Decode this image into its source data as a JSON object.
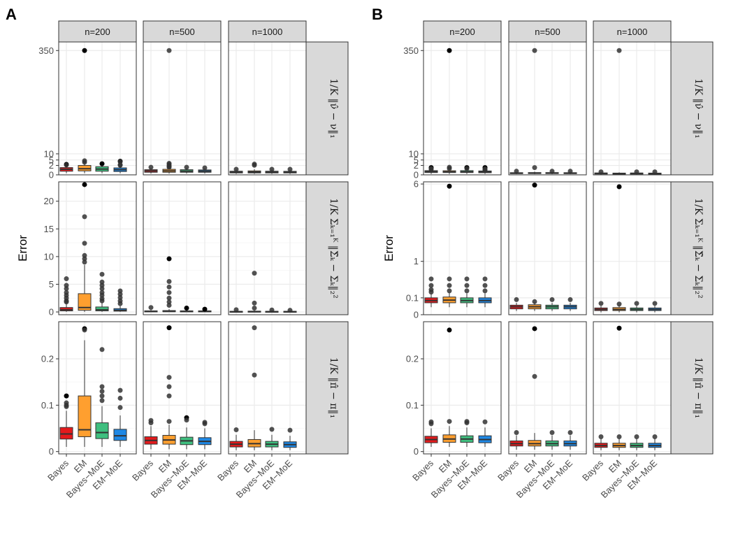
{
  "figure": {
    "panel_labels": [
      "A",
      "B"
    ],
    "ylabel": "Error",
    "column_strips": [
      "n=200",
      "n=500",
      "n=1000"
    ],
    "row_strips": [
      "1/K ‖ν̂ − ν‖₁",
      "1/K Σₖ₌₁ᴷ ‖Σ̂ₖ − Σₖ‖₂²",
      "1/K ‖π̂ − π‖₁"
    ],
    "methods": [
      "Bayes",
      "EM",
      "Bayes−MoE",
      "EM−MoE"
    ],
    "method_colors": [
      "#e41a1c",
      "#ff9f2f",
      "#3fbf7f",
      "#1e88e5"
    ]
  },
  "chart_data": [
    {
      "type": "box",
      "panel": "A",
      "row": 0,
      "scale": "sqrt",
      "ylim": [
        0,
        400
      ],
      "yticks": [
        0,
        2,
        5,
        10,
        350
      ],
      "boxes": [
        [
          [
            0.06,
            0.3,
            0.7,
            1.2,
            2.2
          ],
          [
            0.06,
            0.35,
            0.85,
            2.0,
            4.2
          ],
          [
            0.06,
            0.3,
            0.75,
            1.5,
            2.0
          ],
          [
            0.06,
            0.25,
            0.6,
            1.1,
            1.8
          ]
        ],
        [
          [
            0.04,
            0.15,
            0.35,
            0.6,
            1.1
          ],
          [
            0.04,
            0.15,
            0.35,
            0.7,
            1.2
          ],
          [
            0.04,
            0.15,
            0.3,
            0.6,
            1.1
          ],
          [
            0.04,
            0.15,
            0.3,
            0.55,
            1.0
          ]
        ],
        [
          [
            0.02,
            0.08,
            0.18,
            0.3,
            0.6
          ],
          [
            0.02,
            0.08,
            0.18,
            0.35,
            0.7
          ],
          [
            0.02,
            0.08,
            0.18,
            0.3,
            0.6
          ],
          [
            0.02,
            0.08,
            0.16,
            0.28,
            0.55
          ]
        ]
      ],
      "outliers": [
        [
          [
            2.5,
            2.2
          ],
          [
            350,
            4.5,
            3.6
          ],
          [
            2.8
          ],
          [
            4.2,
            4.0,
            2.3,
            2.1
          ]
        ],
        [
          [
            1.3
          ],
          [
            350,
            3.0,
            2.5,
            1.8,
            1.3,
            1.6
          ],
          [
            1.3
          ],
          [
            1.1
          ]
        ],
        [
          [
            0.7
          ],
          [
            2.6,
            2.1
          ],
          [
            0.7
          ],
          [
            0.7
          ]
        ]
      ],
      "solid_outliers": [
        [
          0,
          0
        ],
        [
          1,
          0
        ],
        [
          2,
          0
        ],
        [
          3,
          0
        ]
      ]
    },
    {
      "type": "box",
      "panel": "A",
      "row": 1,
      "scale": "linear",
      "ylim": [
        -0.5,
        23.5
      ],
      "yticks": [
        0,
        5,
        10,
        15,
        20
      ],
      "boxes": [
        [
          [
            0.02,
            0.2,
            0.4,
            0.8,
            1.5
          ],
          [
            0.02,
            0.3,
            0.8,
            3.3,
            8.5
          ],
          [
            0.02,
            0.2,
            0.4,
            0.9,
            1.8
          ],
          [
            0.02,
            0.15,
            0.3,
            0.6,
            1.1
          ]
        ],
        [
          [
            0.01,
            0.05,
            0.1,
            0.2,
            0.4
          ],
          [
            0.01,
            0.05,
            0.1,
            0.25,
            0.5
          ],
          [
            0.01,
            0.05,
            0.1,
            0.2,
            0.4
          ],
          [
            0.01,
            0.05,
            0.1,
            0.2,
            0.35
          ]
        ],
        [
          [
            0.01,
            0.03,
            0.06,
            0.12,
            0.25
          ],
          [
            0.01,
            0.03,
            0.06,
            0.15,
            0.3
          ],
          [
            0.01,
            0.03,
            0.06,
            0.12,
            0.25
          ],
          [
            0.01,
            0.03,
            0.06,
            0.12,
            0.22
          ]
        ]
      ],
      "outliers": [
        [
          [
            6.0,
            4.8,
            4.2,
            3.5,
            3.0,
            2.5,
            2.0,
            1.8
          ],
          [
            23.0,
            17.2,
            12.4,
            10.2,
            9.6,
            9.0
          ],
          [
            6.8,
            5.4,
            4.8,
            4.2,
            3.5,
            3.0,
            2.4,
            2.0
          ],
          [
            3.8,
            3.2,
            2.6,
            2.0,
            1.5
          ]
        ],
        [
          [
            0.8
          ],
          [
            9.6,
            5.5,
            4.5,
            3.5,
            2.5,
            1.8,
            1.2
          ],
          [
            0.7
          ],
          [
            0.5
          ]
        ],
        [
          [
            0.4
          ],
          [
            7.0,
            1.6,
            0.7
          ],
          [
            0.35
          ],
          [
            0.3
          ]
        ]
      ],
      "solid_outliers": [
        [
          1,
          0
        ],
        [
          1,
          1
        ],
        [
          2,
          1
        ],
        [
          3,
          1
        ]
      ]
    },
    {
      "type": "box",
      "panel": "A",
      "row": 2,
      "scale": "linear",
      "ylim": [
        -0.005,
        0.28
      ],
      "yticks": [
        0.0,
        0.1,
        0.2
      ],
      "boxes": [
        [
          [
            0.01,
            0.027,
            0.038,
            0.052,
            0.088
          ],
          [
            0.01,
            0.032,
            0.047,
            0.12,
            0.24
          ],
          [
            0.01,
            0.028,
            0.041,
            0.062,
            0.098
          ],
          [
            0.01,
            0.024,
            0.034,
            0.048,
            0.078
          ]
        ],
        [
          [
            0.005,
            0.016,
            0.024,
            0.032,
            0.055
          ],
          [
            0.005,
            0.016,
            0.025,
            0.035,
            0.058
          ],
          [
            0.005,
            0.015,
            0.023,
            0.031,
            0.052
          ],
          [
            0.005,
            0.015,
            0.022,
            0.03,
            0.05
          ]
        ],
        [
          [
            0.003,
            0.01,
            0.016,
            0.022,
            0.036
          ],
          [
            0.003,
            0.01,
            0.017,
            0.026,
            0.046
          ],
          [
            0.003,
            0.01,
            0.016,
            0.022,
            0.036
          ],
          [
            0.003,
            0.009,
            0.015,
            0.021,
            0.034
          ]
        ]
      ],
      "outliers": [
        [
          [
            0.12,
            0.105,
            0.1,
            0.097
          ],
          [
            0.265,
            0.262
          ],
          [
            0.22,
            0.14,
            0.13,
            0.12,
            0.11
          ],
          [
            0.132,
            0.115,
            0.095
          ]
        ],
        [
          [
            0.067,
            0.062
          ],
          [
            0.267,
            0.16,
            0.14,
            0.12,
            0.065
          ],
          [
            0.073,
            0.068
          ],
          [
            0.063,
            0.06
          ]
        ],
        [
          [
            0.047
          ],
          [
            0.267,
            0.165
          ],
          [
            0.048
          ],
          [
            0.046
          ]
        ]
      ],
      "solid_outliers": [
        [
          0,
          0
        ],
        [
          1,
          0
        ],
        [
          1,
          1
        ],
        [
          2,
          1
        ]
      ]
    },
    {
      "type": "box",
      "panel": "B",
      "row": 0,
      "scale": "sqrt",
      "ylim": [
        0,
        400
      ],
      "yticks": [
        0,
        2,
        5,
        10,
        350
      ],
      "boxes": [
        [
          [
            0.02,
            0.12,
            0.22,
            0.4,
            0.9
          ],
          [
            0.02,
            0.12,
            0.2,
            0.38,
            0.9
          ],
          [
            0.02,
            0.12,
            0.2,
            0.4,
            0.9
          ],
          [
            0.02,
            0.1,
            0.18,
            0.34,
            0.85
          ]
        ],
        [
          [
            0.01,
            0.04,
            0.07,
            0.11,
            0.2
          ],
          [
            0.01,
            0.04,
            0.07,
            0.12,
            0.22
          ],
          [
            0.01,
            0.04,
            0.07,
            0.12,
            0.2
          ],
          [
            0.01,
            0.04,
            0.07,
            0.11,
            0.2
          ]
        ],
        [
          [
            0.005,
            0.025,
            0.05,
            0.08,
            0.15
          ],
          [
            0.005,
            0.025,
            0.045,
            0.07,
            0.14
          ],
          [
            0.005,
            0.025,
            0.05,
            0.075,
            0.15
          ],
          [
            0.005,
            0.025,
            0.045,
            0.07,
            0.14
          ]
        ]
      ],
      "outliers": [
        [
          [
            1.2,
            0.9,
            0.7
          ],
          [
            350,
            1.3,
            0.9
          ],
          [
            1.2,
            0.9
          ],
          [
            1.2,
            0.8,
            0.6,
            0.5
          ]
        ],
        [
          [
            0.3
          ],
          [
            350,
            1.2
          ],
          [
            0.3
          ],
          [
            0.3
          ]
        ],
        [
          [
            0.2
          ],
          [
            350
          ],
          [
            0.2
          ],
          [
            0.2
          ]
        ]
      ],
      "solid_outliers": [
        [
          0,
          0
        ],
        [
          1,
          0
        ],
        [
          2,
          0
        ],
        [
          3,
          0
        ]
      ]
    },
    {
      "type": "box",
      "panel": "B",
      "row": 1,
      "scale": "sqrt",
      "ylim": [
        0,
        6.2
      ],
      "yticks": [
        0,
        0.1,
        1,
        6
      ],
      "boxes": [
        [
          [
            0.02,
            0.05,
            0.07,
            0.1,
            0.16
          ],
          [
            0.02,
            0.05,
            0.075,
            0.11,
            0.17
          ],
          [
            0.02,
            0.05,
            0.07,
            0.1,
            0.16
          ],
          [
            0.02,
            0.05,
            0.07,
            0.1,
            0.16
          ]
        ],
        [
          [
            0.005,
            0.012,
            0.022,
            0.032,
            0.05
          ],
          [
            0.005,
            0.012,
            0.022,
            0.035,
            0.055
          ],
          [
            0.005,
            0.012,
            0.022,
            0.032,
            0.05
          ],
          [
            0.005,
            0.012,
            0.022,
            0.032,
            0.05
          ]
        ],
        [
          [
            0.002,
            0.006,
            0.01,
            0.016,
            0.028
          ],
          [
            0.002,
            0.006,
            0.01,
            0.018,
            0.032
          ],
          [
            0.002,
            0.006,
            0.01,
            0.016,
            0.028
          ],
          [
            0.002,
            0.006,
            0.01,
            0.016,
            0.028
          ]
        ]
      ],
      "outliers": [
        [
          [
            0.45,
            0.3,
            0.22,
            0.18
          ],
          [
            5.8,
            0.45,
            0.3,
            0.2
          ],
          [
            0.45,
            0.3,
            0.2
          ],
          [
            0.45,
            0.3,
            0.2
          ]
        ],
        [
          [
            0.08
          ],
          [
            5.9,
            0.06
          ],
          [
            0.08
          ],
          [
            0.08
          ]
        ],
        [
          [
            0.045
          ],
          [
            5.75,
            0.04
          ],
          [
            0.045
          ],
          [
            0.045
          ]
        ]
      ],
      "solid_outliers": [
        [
          1,
          0
        ],
        [
          1,
          1
        ],
        [
          1,
          2
        ]
      ]
    },
    {
      "type": "box",
      "panel": "B",
      "row": 2,
      "scale": "linear",
      "ylim": [
        -0.005,
        0.28
      ],
      "yticks": [
        0.0,
        0.1,
        0.2
      ],
      "boxes": [
        [
          [
            0.01,
            0.019,
            0.026,
            0.033,
            0.05
          ],
          [
            0.01,
            0.02,
            0.027,
            0.036,
            0.055
          ],
          [
            0.01,
            0.02,
            0.027,
            0.034,
            0.052
          ],
          [
            0.01,
            0.019,
            0.026,
            0.034,
            0.052
          ]
        ],
        [
          [
            0.004,
            0.012,
            0.017,
            0.023,
            0.035
          ],
          [
            0.004,
            0.012,
            0.017,
            0.024,
            0.04
          ],
          [
            0.004,
            0.012,
            0.017,
            0.023,
            0.035
          ],
          [
            0.004,
            0.012,
            0.017,
            0.023,
            0.035
          ]
        ],
        [
          [
            0.003,
            0.009,
            0.013,
            0.018,
            0.028
          ],
          [
            0.003,
            0.009,
            0.013,
            0.018,
            0.028
          ],
          [
            0.003,
            0.009,
            0.013,
            0.018,
            0.028
          ],
          [
            0.003,
            0.009,
            0.013,
            0.018,
            0.028
          ]
        ]
      ],
      "outliers": [
        [
          [
            0.064,
            0.06
          ],
          [
            0.262,
            0.065
          ],
          [
            0.065,
            0.062
          ],
          [
            0.064
          ]
        ],
        [
          [
            0.041
          ],
          [
            0.265,
            0.162
          ],
          [
            0.041
          ],
          [
            0.041
          ]
        ],
        [
          [
            0.032
          ],
          [
            0.266,
            0.032
          ],
          [
            0.032
          ],
          [
            0.032
          ]
        ]
      ],
      "solid_outliers": [
        [
          1,
          0
        ],
        [
          1,
          1
        ],
        [
          1,
          2
        ]
      ]
    }
  ]
}
